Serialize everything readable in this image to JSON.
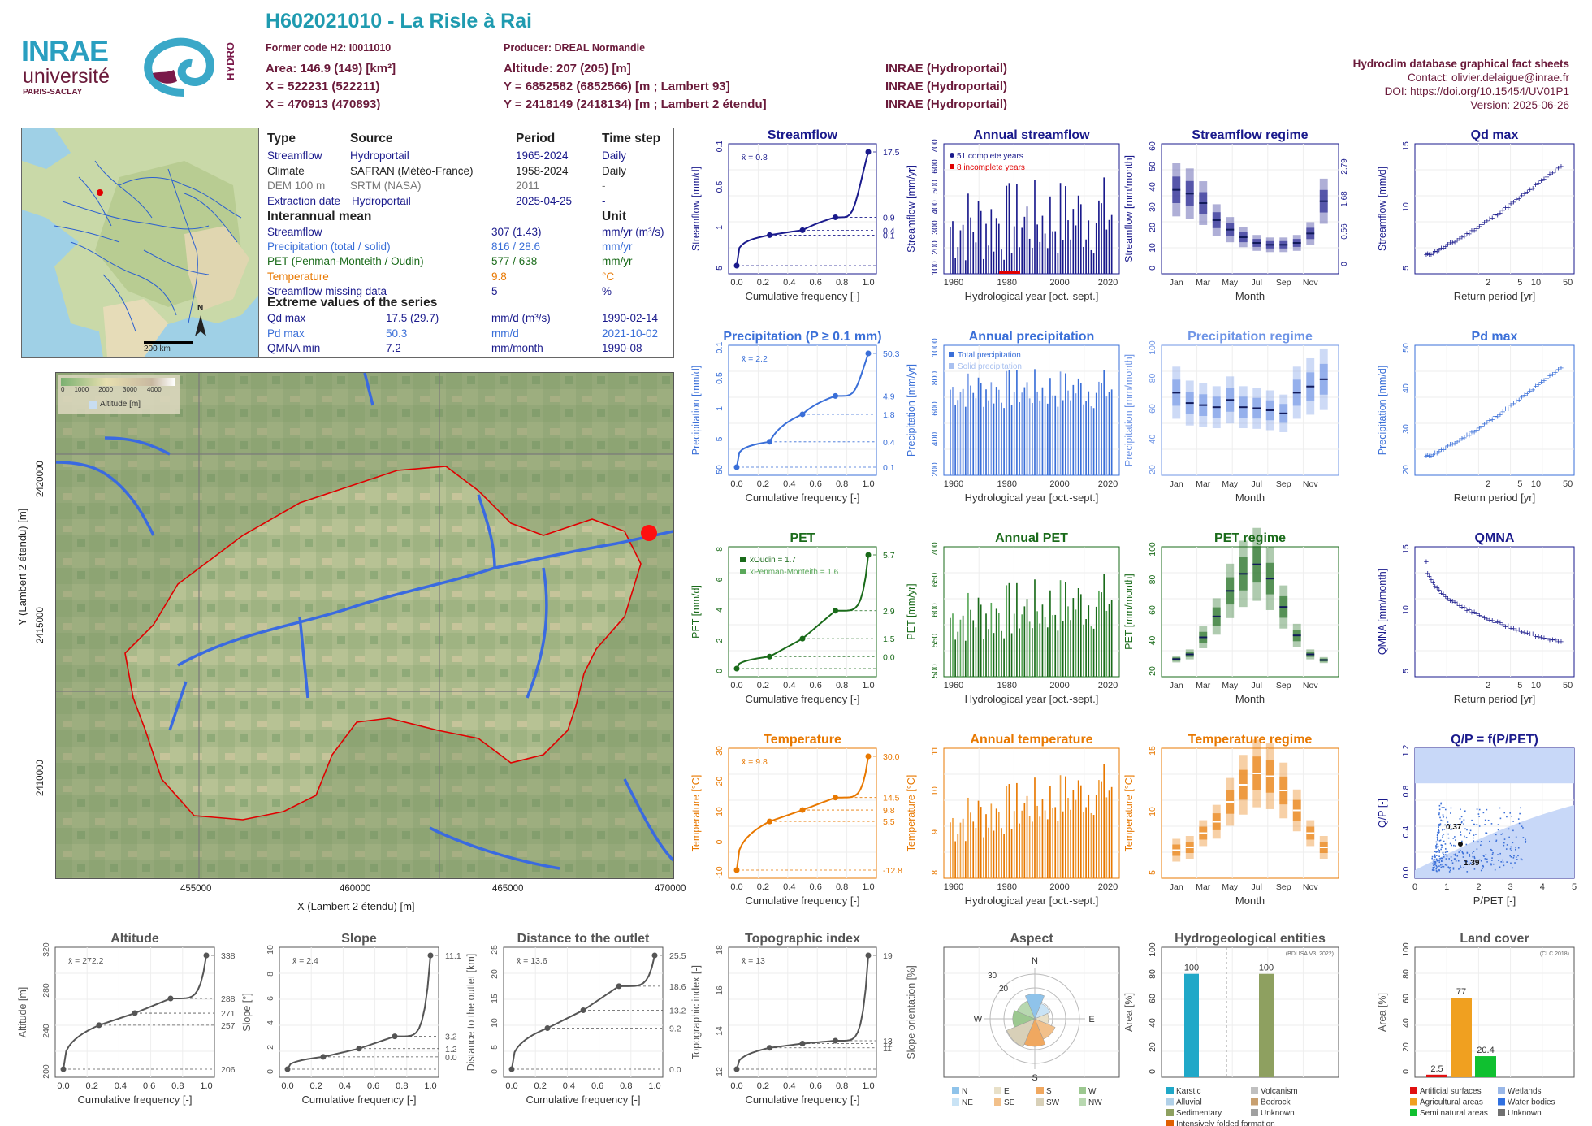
{
  "header": {
    "code_title": "H602021010 - La Risle à Rai",
    "former_code": "Former code H2: I0011010",
    "producer": "Producer: DREAL Normandie",
    "area": "Area: 146.9 (149) [km²]",
    "x93": "X = 522231 (522211)",
    "x2e": "X = 470913 (470893)",
    "altitude": "Altitude: 207 (205) [m]",
    "y93": "Y = 6852582 (6852566) [m ; Lambert 93]",
    "y2e": "Y = 2418149 (2418134) [m ; Lambert 2 étendu]",
    "src1": "INRAE (Hydroportail)",
    "src2": "INRAE (Hydroportail)",
    "src3": "INRAE (Hydroportail)"
  },
  "factsheet": {
    "title": "Hydroclim database graphical fact sheets",
    "contact": "Contact: olivier.delaigue@inrae.fr",
    "doi": "DOI: https://doi.org/10.15454/UV01P1",
    "version": "Version: 2025-06-26"
  },
  "logos": {
    "inrae": "INRAE",
    "univ": "université",
    "paris": "PARIS-SACLAY",
    "hydro": "HYDRO"
  },
  "minimap": {
    "scale": "200 km",
    "north": "N"
  },
  "info": {
    "h_type": "Type",
    "h_source": "Source",
    "h_period": "Period",
    "h_step": "Time step",
    "rows": [
      {
        "type": "Streamflow",
        "source": "Hydroportail",
        "period": "1965-2024",
        "step": "Daily",
        "color": "#1a1a8c"
      },
      {
        "type": "Climate",
        "source": "SAFRAN (Météo-France)",
        "period": "1958-2024",
        "step": "Daily",
        "color": "#222222"
      },
      {
        "type": "DEM 100 m",
        "source": "SRTM (NASA)",
        "period": "2011",
        "step": "-",
        "color": "#777777"
      },
      {
        "type": "Extraction date",
        "source": "Hydroportail",
        "period": "2025-04-25",
        "step": "-",
        "color": "#1a1a8c"
      }
    ],
    "interannual_title": "Interannual mean",
    "unit_title": "Unit",
    "means": [
      {
        "label": "Streamflow",
        "value": "307 (1.43)",
        "unit": "mm/yr (m³/s)",
        "color": "#1a1a8c"
      },
      {
        "label": "Precipitation (total / solid)",
        "value": "816 / 28.6",
        "unit": "mm/yr",
        "color": "#3a6fd8"
      },
      {
        "label": "PET (Penman-Monteith / Oudin)",
        "value": "577 / 638",
        "unit": "mm/yr",
        "color": "#1a6b1a"
      },
      {
        "label": "Temperature",
        "value": "9.8",
        "unit": "°C",
        "color": "#e87800"
      },
      {
        "label": "Streamflow missing data",
        "value": "5",
        "unit": "%",
        "color": "#1a1a8c"
      }
    ],
    "extreme_title": "Extreme values of the series",
    "extremes": [
      {
        "label": "Qd max",
        "value": "17.5 (29.7)",
        "unit": "mm/d (m³/s)",
        "date": "1990-02-14",
        "color": "#1a1a8c"
      },
      {
        "label": "Pd max",
        "value": "50.3",
        "unit": "mm/d",
        "date": "2021-10-02",
        "color": "#3a6fd8"
      },
      {
        "label": "QMNA min",
        "value": "7.2",
        "unit": "mm/month",
        "date": "1990-08",
        "color": "#1a1a8c"
      }
    ]
  },
  "bigmap": {
    "legend_title": "Altitude [m]",
    "legend_ticks": [
      "0",
      "1000",
      "2000",
      "3000",
      "4000"
    ],
    "xlabel": "X (Lambert 2 étendu) [m]",
    "ylabel": "Y (Lambert 2 étendu) [m]",
    "xticks": [
      "455000",
      "460000",
      "465000",
      "470000"
    ],
    "yticks": [
      "2420000",
      "2415000",
      "2410000"
    ]
  },
  "colors": {
    "flow": "#1a1a8c",
    "precip": "#3a6fd8",
    "pet": "#1a6b1a",
    "pet_light": "#5aa85a",
    "temp": "#e87800",
    "grey": "#555555",
    "brick": "#8b1a3a"
  },
  "chart_data": [
    {
      "id": "streamflow",
      "type": "line",
      "title": "Streamflow",
      "xlabel": "Cumulative frequency [-]",
      "ylabel": "Streamflow [mm/d]",
      "ylog": true,
      "mean_label": "x̄ = 0.8",
      "x": [
        0,
        0.25,
        0.5,
        0.75,
        1.0
      ],
      "y": [
        0.1,
        0.4,
        0.5,
        0.9,
        17.5
      ],
      "right_ticks": [
        "17.5",
        "0.9",
        "0.4",
        "0.1"
      ],
      "left_ticks": [
        "5",
        "1",
        "0.5",
        "0.1"
      ]
    },
    {
      "id": "annual_streamflow",
      "type": "bar",
      "title": "Annual streamflow",
      "xlabel": "Hydrological year [oct.-sept.]",
      "ylabel": "Streamflow [mm/yr]",
      "legend": [
        "51 complete years",
        "8 incomplete years"
      ],
      "xticks": [
        "1960",
        "1980",
        "2000",
        "2020"
      ],
      "yticks": [
        "100",
        "200",
        "300",
        "400",
        "500",
        "600",
        "700"
      ]
    },
    {
      "id": "streamflow_regime",
      "type": "bar",
      "title": "Streamflow regime",
      "xlabel": "Month",
      "ylabel": "Streamflow [mm/month]",
      "categories": [
        "Jan",
        "Feb",
        "Mar",
        "Apr",
        "May",
        "Jun",
        "Jul",
        "Aug",
        "Sep",
        "Oct",
        "Nov",
        "Dec"
      ],
      "values": [
        40,
        38,
        33,
        24,
        19,
        15,
        12,
        11,
        11,
        12,
        17,
        34
      ],
      "xticks": [
        "Jan",
        "Mar",
        "May",
        "Jul",
        "Sep",
        "Nov"
      ],
      "yticks": [
        "0",
        "10",
        "20",
        "30",
        "40",
        "50",
        "60"
      ],
      "right_ticks": [
        "2.79",
        "1.68",
        "0.56",
        "0"
      ]
    },
    {
      "id": "qd_max",
      "type": "scatter",
      "title": "Qd max",
      "xlabel": "Return period [yr]",
      "ylabel": "Streamflow [mm/d]",
      "xticks": [
        "2",
        "5",
        "10",
        "50"
      ],
      "yticks": [
        "5",
        "10",
        "15"
      ]
    },
    {
      "id": "precipitation",
      "type": "line",
      "title": "Precipitation (P ≥ 0.1 mm)",
      "xlabel": "Cumulative frequency [-]",
      "ylabel": "Precipitation [mm/d]",
      "mean_label": "x̄ = 2.2",
      "x": [
        0,
        0.25,
        0.5,
        0.75,
        1.0
      ],
      "y": [
        0.1,
        0.4,
        1.8,
        4.9,
        50.3
      ],
      "right_ticks": [
        "50.3",
        "4.9",
        "1.8",
        "0.4",
        "0.1"
      ],
      "left_ticks": [
        "50",
        "5",
        "1",
        "0.5",
        "0.1"
      ]
    },
    {
      "id": "annual_precipitation",
      "type": "bar",
      "title": "Annual precipitation",
      "xlabel": "Hydrological year [oct.-sept.]",
      "ylabel": "Precipitation [mm/yr]",
      "legend": [
        "Total precipitation",
        "Solid precipitation"
      ],
      "xticks": [
        "1960",
        "1980",
        "2000",
        "2020"
      ],
      "yticks": [
        "200",
        "400",
        "600",
        "800",
        "1000"
      ]
    },
    {
      "id": "precipitation_regime",
      "type": "bar",
      "title": "Precipitation regime",
      "xlabel": "Month",
      "ylabel": "Precipitation [mm/month]",
      "categories": [
        "Jan",
        "Feb",
        "Mar",
        "Apr",
        "May",
        "Jun",
        "Jul",
        "Aug",
        "Sep",
        "Oct",
        "Nov",
        "Dec"
      ],
      "values": [
        72,
        62,
        60,
        58,
        65,
        58,
        57,
        55,
        52,
        72,
        78,
        85
      ],
      "xticks": [
        "Jan",
        "Mar",
        "May",
        "Jul",
        "Sep",
        "Nov"
      ],
      "yticks": [
        "20",
        "40",
        "60",
        "80",
        "100"
      ]
    },
    {
      "id": "pd_max",
      "type": "scatter",
      "title": "Pd max",
      "xlabel": "Return period [yr]",
      "ylabel": "Precipitation [mm/d]",
      "xticks": [
        "2",
        "5",
        "10",
        "50"
      ],
      "yticks": [
        "20",
        "30",
        "40",
        "50"
      ]
    },
    {
      "id": "pet",
      "type": "line",
      "title": "PET",
      "xlabel": "Cumulative frequency [-]",
      "ylabel": "PET [mm/d]",
      "mean_label_1": "x̄Oudin = 1.7",
      "mean_label_2": "x̄Penman-Monteith = 1.6",
      "x": [
        0,
        0.25,
        0.5,
        0.75,
        1.0
      ],
      "y": [
        0.0,
        0.6,
        1.5,
        2.9,
        5.7
      ],
      "right_ticks": [
        "5.7",
        "2.9",
        "1.5",
        "0.0"
      ],
      "left_ticks": [
        "0",
        "2",
        "4",
        "6",
        "8"
      ]
    },
    {
      "id": "annual_pet",
      "type": "bar",
      "title": "Annual PET",
      "xlabel": "Hydrological year [oct.-sept.]",
      "ylabel": "PET [mm/yr]",
      "xticks": [
        "1960",
        "1980",
        "2000",
        "2020"
      ],
      "yticks": [
        "500",
        "550",
        "600",
        "650",
        "700"
      ]
    },
    {
      "id": "pet_regime",
      "type": "bar",
      "title": "PET regime",
      "xlabel": "Month",
      "ylabel": "PET [mm/month]",
      "categories": [
        "Jan",
        "Feb",
        "Mar",
        "Apr",
        "May",
        "Jun",
        "Jul",
        "Aug",
        "Sep",
        "Oct",
        "Nov",
        "Dec"
      ],
      "values": [
        10,
        15,
        33,
        55,
        82,
        100,
        110,
        95,
        65,
        35,
        15,
        9
      ],
      "xticks": [
        "Jan",
        "Mar",
        "May",
        "Jul",
        "Sep",
        "Nov"
      ],
      "yticks": [
        "20",
        "40",
        "60",
        "80",
        "100"
      ]
    },
    {
      "id": "qmna",
      "type": "scatter",
      "title": "QMNA",
      "xlabel": "Return period [yr]",
      "ylabel": "QMNA [mm/month]",
      "xticks": [
        "2",
        "5",
        "10",
        "50"
      ],
      "yticks": [
        "5",
        "10",
        "15"
      ]
    },
    {
      "id": "temperature",
      "type": "line",
      "title": "Temperature",
      "xlabel": "Cumulative frequency [-]",
      "ylabel": "Temperature [°C]",
      "mean_label": "x̄ = 9.8",
      "x": [
        0,
        0.25,
        0.5,
        0.75,
        1.0
      ],
      "y": [
        -12.8,
        5.5,
        9.8,
        14.5,
        30.0
      ],
      "right_ticks": [
        "30.0",
        "14.5",
        "9.8",
        "5.5",
        "-12.8"
      ],
      "left_ticks": [
        "-10",
        "0",
        "10",
        "20",
        "30"
      ]
    },
    {
      "id": "annual_temperature",
      "type": "bar",
      "title": "Annual temperature",
      "xlabel": "Hydrological year [oct.-sept.]",
      "ylabel": "Temperature [°C]",
      "xticks": [
        "1960",
        "1980",
        "2000",
        "2020"
      ],
      "yticks": [
        "8",
        "9",
        "10",
        "11"
      ]
    },
    {
      "id": "temperature_regime",
      "type": "bar",
      "title": "Temperature regime",
      "xlabel": "Month",
      "ylabel": "Temperature [°C]",
      "categories": [
        "Jan",
        "Feb",
        "Mar",
        "Apr",
        "May",
        "Jun",
        "Jul",
        "Aug",
        "Sep",
        "Oct",
        "Nov",
        "Dec"
      ],
      "values": [
        3.5,
        4,
        6.5,
        8.5,
        12,
        15,
        17,
        16.5,
        14,
        10.5,
        6.5,
        4
      ],
      "xticks": [
        "Jan",
        "Mar",
        "May",
        "Jul",
        "Sep",
        "Nov"
      ],
      "yticks": [
        "5",
        "10",
        "15"
      ]
    },
    {
      "id": "qp_ppet",
      "type": "scatter",
      "title": "Q/P = f(P/PET)",
      "xlabel": "P/PET [-]",
      "ylabel": "Q/P [-]",
      "xticks": [
        "0",
        "1",
        "2",
        "3",
        "4",
        "5"
      ],
      "yticks": [
        "0.0",
        "0.4",
        "0.8",
        "1.2"
      ],
      "annot_x": "1.39",
      "annot_y": "0.37"
    },
    {
      "id": "altitude",
      "type": "line",
      "title": "Altitude",
      "xlabel": "Cumulative frequency [-]",
      "ylabel": "Altitude [m]",
      "mean_label": "x̄ = 272.2",
      "x": [
        0,
        0.25,
        0.5,
        0.75,
        1.0
      ],
      "y": [
        206,
        257,
        271,
        288,
        338
      ],
      "right_ticks": [
        "338",
        "288",
        "271",
        "257",
        "206"
      ],
      "left_ticks": [
        "200",
        "240",
        "280",
        "320"
      ]
    },
    {
      "id": "slope",
      "type": "line",
      "title": "Slope",
      "xlabel": "Cumulative frequency [-]",
      "ylabel": "Slope [°]",
      "mean_label": "x̄ = 2.4",
      "x": [
        0,
        0.25,
        0.5,
        0.75,
        1.0
      ],
      "y": [
        0.0,
        1.2,
        2.0,
        3.2,
        11.1
      ],
      "right_ticks": [
        "11.1",
        "3.2",
        "1.2",
        "0.0"
      ],
      "left_ticks": [
        "0",
        "2",
        "4",
        "6",
        "8",
        "10"
      ]
    },
    {
      "id": "distance",
      "type": "line",
      "title": "Distance to the outlet",
      "xlabel": "Cumulative frequency [-]",
      "ylabel": "Distance to the outlet [km]",
      "mean_label": "x̄ = 13.6",
      "x": [
        0,
        0.25,
        0.5,
        0.75,
        1.0
      ],
      "y": [
        0.0,
        9.2,
        13.2,
        18.6,
        25.5
      ],
      "right_ticks": [
        "25.5",
        "18.6",
        "13.2",
        "9.2",
        "0.0"
      ],
      "left_ticks": [
        "0",
        "5",
        "10",
        "15",
        "20",
        "25"
      ]
    },
    {
      "id": "topo_index",
      "type": "line",
      "title": "Topographic index",
      "xlabel": "Cumulative frequency [-]",
      "ylabel": "Topographic index [-]",
      "mean_label": "x̄ = 13",
      "x": [
        0,
        0.25,
        0.5,
        0.75,
        1.0
      ],
      "y": [
        11,
        12.5,
        12.8,
        13.0,
        19
      ],
      "right_ticks": [
        "19",
        "13",
        "12",
        "11"
      ],
      "left_ticks": [
        "12",
        "14",
        "16",
        "18"
      ]
    },
    {
      "id": "aspect",
      "type": "pie",
      "title": "Aspect",
      "ylabel": "Slope orientation [%]",
      "rings": [
        "20",
        "30"
      ],
      "dirs": [
        "N",
        "E",
        "S",
        "W"
      ],
      "legend": [
        "N",
        "NE",
        "E",
        "SE",
        "S",
        "SW",
        "W",
        "NW"
      ],
      "values": [
        18,
        12,
        10,
        16,
        20,
        22,
        16,
        14
      ]
    },
    {
      "id": "hydrogeology",
      "type": "bar",
      "title": "Hydrogeological entities",
      "ylabel": "Area [%]",
      "source": "(BDLISA V3, 2022)",
      "categories": [
        "Karstic",
        "Sedimentary"
      ],
      "values": [
        100,
        100
      ],
      "yticks": [
        "0",
        "20",
        "40",
        "60",
        "80",
        "100"
      ],
      "legend": [
        "Karstic",
        "Volcanism",
        "Alluvial",
        "Bedrock",
        "Sedimentary",
        "Unknown",
        "Intensively folded formation"
      ]
    },
    {
      "id": "land_cover",
      "type": "bar",
      "title": "Land cover",
      "ylabel": "Area [%]",
      "source": "(CLC 2018)",
      "categories": [
        "Artificial surfaces",
        "Agricultural areas",
        "Semi natural areas"
      ],
      "values": [
        2.5,
        77,
        20.4
      ],
      "yticks": [
        "0",
        "20",
        "40",
        "60",
        "80",
        "100"
      ],
      "legend": [
        "Artificial surfaces",
        "Wetlands",
        "Agricultural areas",
        "Water bodies",
        "Semi natural areas",
        "Unknown"
      ]
    }
  ]
}
